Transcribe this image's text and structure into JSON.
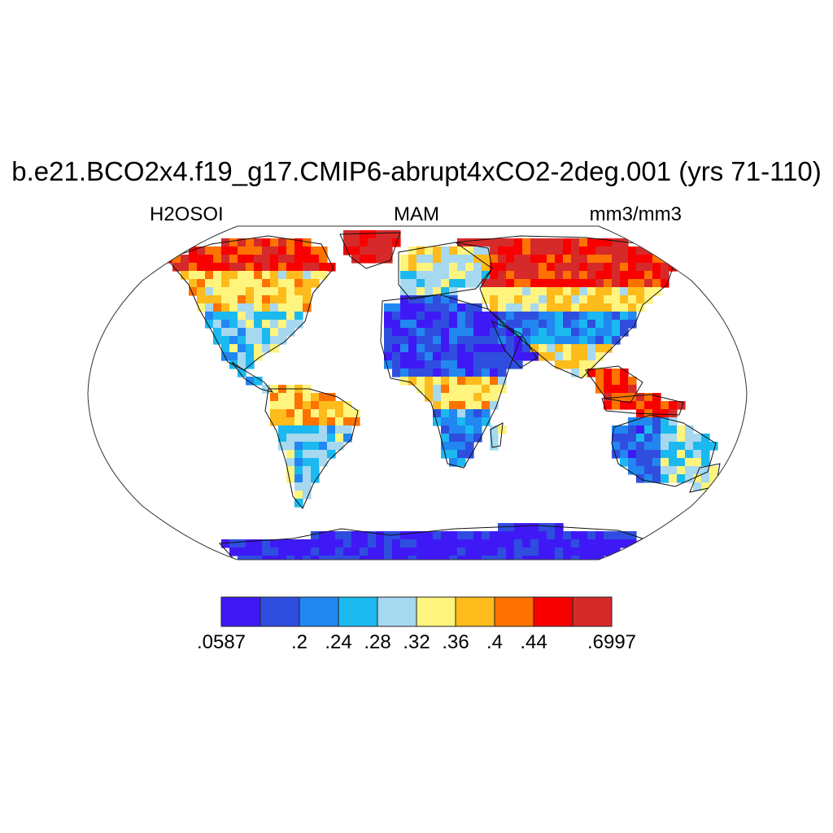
{
  "title": "b.e21.BCO2x4.f19_g17.CMIP6-abrupt4xCO2-2deg.001 (yrs 71-110)",
  "subtitle_left": "H2OSOI",
  "subtitle_center": "MAM",
  "subtitle_right": "mm3/mm3",
  "map": {
    "projection": "Robinson",
    "variable": "H2OSOI",
    "season": "MAM"
  },
  "colorbar": {
    "colors": [
      "#3f19f5",
      "#2f4ee0",
      "#2287f0",
      "#1bb9f0",
      "#a6d8f0",
      "#fff47d",
      "#fdbb1c",
      "#fd7200",
      "#f80000",
      "#d62a2a"
    ],
    "labels": [
      ".0587",
      ".2",
      ".24",
      ".28",
      ".32",
      ".36",
      ".4",
      ".44",
      ".6997"
    ]
  }
}
